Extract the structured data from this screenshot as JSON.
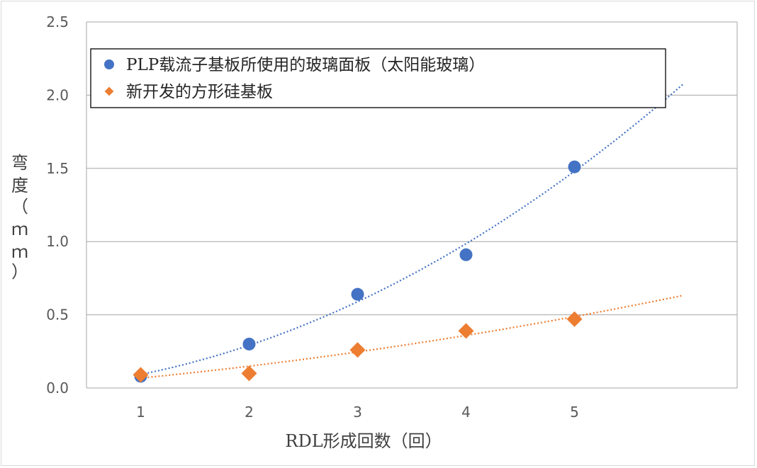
{
  "chart_data": {
    "type": "scatter",
    "title": "",
    "xlabel": "RDL形成回数（回）",
    "ylabel": "弯度（ｍｍ）",
    "ylabel_chars": [
      "弯",
      "度",
      "（",
      "ｍ",
      "ｍ",
      "）"
    ],
    "x_ticks": [
      "1",
      "2",
      "3",
      "4",
      "5"
    ],
    "y_ticks": [
      "0.0",
      "0.5",
      "1.0",
      "1.5",
      "2.0",
      "2.5"
    ],
    "xlim": [
      0.5,
      6.5
    ],
    "ylim": [
      0,
      2.5
    ],
    "grid": true,
    "legend_position": "top-left",
    "series": [
      {
        "name": "PLP载流子基板所使用的玻璃面板（太阳能玻璃）",
        "marker": "circle",
        "color": "#4472C4",
        "x": [
          1,
          2,
          3,
          4,
          5
        ],
        "y": [
          0.08,
          0.3,
          0.64,
          0.91,
          1.51
        ],
        "trendline": {
          "type": "polynomial",
          "x_range": [
            1,
            6
          ],
          "color": "#4472C4"
        }
      },
      {
        "name": "新开发的方形硅基板",
        "marker": "diamond",
        "color": "#ED7D31",
        "x": [
          1,
          2,
          3,
          4,
          5
        ],
        "y": [
          0.09,
          0.1,
          0.26,
          0.39,
          0.47
        ],
        "trendline": {
          "type": "polynomial",
          "x_range": [
            1,
            6
          ],
          "color": "#ED7D31"
        }
      }
    ]
  }
}
